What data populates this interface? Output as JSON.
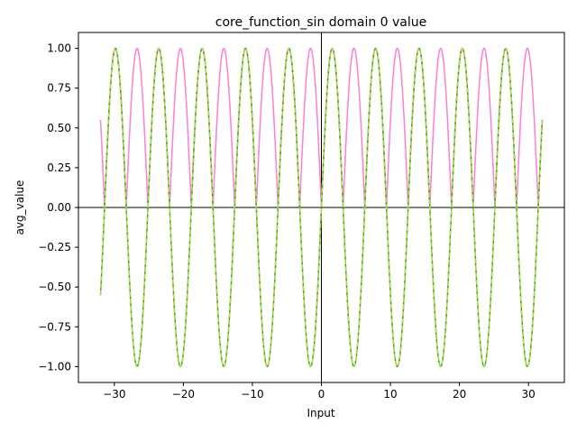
{
  "chart_data": {
    "type": "line",
    "title": "core_function_sin domain 0 value",
    "xlabel": "Input",
    "ylabel": "avg_value",
    "xlim": [
      -35.2,
      35.2
    ],
    "ylim": [
      -1.1,
      1.1
    ],
    "x_ticks": [
      -30,
      -20,
      -10,
      0,
      10,
      20,
      30
    ],
    "x_tick_labels": [
      "−30",
      "−20",
      "−10",
      "0",
      "10",
      "20",
      "30"
    ],
    "y_ticks": [
      -1.0,
      -0.75,
      -0.5,
      -0.25,
      0.0,
      0.25,
      0.5,
      0.75,
      1.0
    ],
    "y_tick_labels": [
      "−1.00",
      "−0.75",
      "−0.50",
      "−0.25",
      "0.00",
      "0.25",
      "0.50",
      "0.75",
      "1.00"
    ],
    "grid": false,
    "reference_lines": {
      "horizontal_at": 0,
      "vertical_at": 0
    },
    "series": [
      {
        "function": "abs(sin(x))",
        "x_range": [
          -32,
          32
        ],
        "color": "#ff7fcc",
        "style": "solid"
      },
      {
        "function": "sin(x)",
        "x_range": [
          -32,
          32
        ],
        "color": "#2ca02c",
        "style": "solid"
      },
      {
        "function": "sin(x)",
        "x_range": [
          -32,
          32
        ],
        "color": "#bcd542",
        "style": "dashed"
      }
    ]
  }
}
